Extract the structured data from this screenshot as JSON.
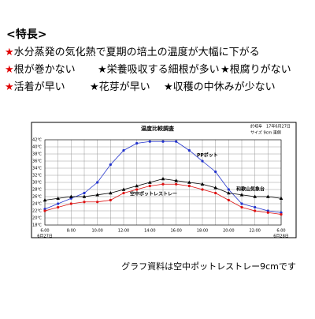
{
  "header": {
    "title": "<特長>"
  },
  "features": [
    [
      {
        "star": "★",
        "text": "水分蒸発の気化熱で夏期の培土の温度が大幅に下がる",
        "star_color": "#e00000"
      }
    ],
    [
      {
        "star": "★",
        "text": "根が巻かない",
        "star_color": "#e00000"
      },
      {
        "star": "★",
        "text": "栄養吸収する細根が多い",
        "star_color": "#000000"
      },
      {
        "star": "★",
        "text": "根腐りがない",
        "star_color": "#000000"
      }
    ],
    [
      {
        "star": "★",
        "text": "活着が早い",
        "star_color": "#e00000"
      },
      {
        "star": "★",
        "text": "花芽が早い",
        "star_color": "#000000"
      },
      {
        "star": "★",
        "text": "収穫の中休みが少ない",
        "star_color": "#000000"
      }
    ]
  ],
  "chart_data": {
    "type": "line",
    "title": "温度比較調査",
    "notes": [
      "於岐阜　17年6月27日",
      "サイズ 9cm 東側"
    ],
    "categories": [
      "6:00",
      null,
      "8:00",
      null,
      "10:00",
      null,
      "12:00",
      null,
      "14:00",
      null,
      "16:00",
      null,
      "18:00",
      null,
      "20:00",
      null,
      "22:00",
      null,
      "6:00"
    ],
    "dates": [
      "6月27日",
      "6月28日"
    ],
    "ylim": [
      18,
      42
    ],
    "yticks": [
      {
        "value": 18,
        "label": "18℃"
      },
      {
        "value": 20,
        "label": "20℃"
      },
      {
        "value": 22,
        "label": "22℃"
      },
      {
        "value": 24,
        "label": "24℃"
      },
      {
        "value": 26,
        "label": "26℃"
      },
      {
        "value": 28,
        "label": "28℃"
      },
      {
        "value": 30,
        "label": "30℃"
      },
      {
        "value": 32,
        "label": "32℃"
      },
      {
        "value": 34,
        "label": "34℃"
      },
      {
        "value": 36,
        "label": "36℃"
      },
      {
        "value": 38,
        "label": "38℃"
      },
      {
        "value": 40,
        "label": "40℃"
      },
      {
        "value": 42,
        "label": "42℃"
      }
    ],
    "grid": true,
    "series": [
      {
        "name": "PPポット",
        "color": "#2233cc",
        "marker": "circle",
        "values": [
          22.5,
          24,
          25.5,
          27,
          30,
          35,
          39,
          41,
          41.5,
          41.5,
          41.5,
          39,
          36,
          33,
          28,
          24,
          23,
          22,
          21.5
        ]
      },
      {
        "name": "和歌山気象台",
        "color": "#000000",
        "marker": "triangle",
        "values": [
          25,
          25.5,
          26,
          26,
          26.5,
          27,
          28,
          29,
          30,
          31,
          30.5,
          30,
          29.5,
          28.5,
          27,
          26.5,
          26,
          26,
          25.5
        ]
      },
      {
        "name": "空中ポットレストレー",
        "color": "#dd1111",
        "marker": "circle",
        "values": [
          22,
          23,
          24,
          24.5,
          24.5,
          25,
          27,
          28,
          29,
          29.5,
          29.5,
          29,
          28,
          27,
          25,
          23,
          22,
          21.5,
          21
        ]
      }
    ]
  },
  "caption": "グラフ資料は空中ポットレストレー9cmです"
}
